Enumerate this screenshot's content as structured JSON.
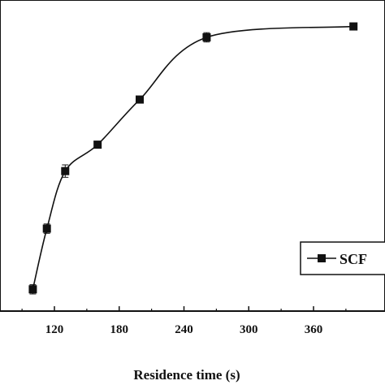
{
  "chart_data": {
    "type": "line",
    "xlabel": "Residence time (s)",
    "xlim": [
      70,
      400
    ],
    "ylim": [
      0,
      1
    ],
    "xticks": [
      120,
      180,
      240,
      300,
      360
    ],
    "grid": false,
    "legend": {
      "placement": "right",
      "entries": [
        "SCF"
      ]
    },
    "series": [
      {
        "name": "SCF",
        "marker": "square",
        "x": [
          100,
          113,
          130,
          160,
          199,
          261,
          397
        ],
        "y": [
          0.07,
          0.265,
          0.45,
          0.535,
          0.68,
          0.88,
          0.915
        ],
        "err": [
          0.015,
          0.015,
          0.02,
          0.008,
          0.008,
          0.015,
          0.008
        ]
      }
    ]
  }
}
